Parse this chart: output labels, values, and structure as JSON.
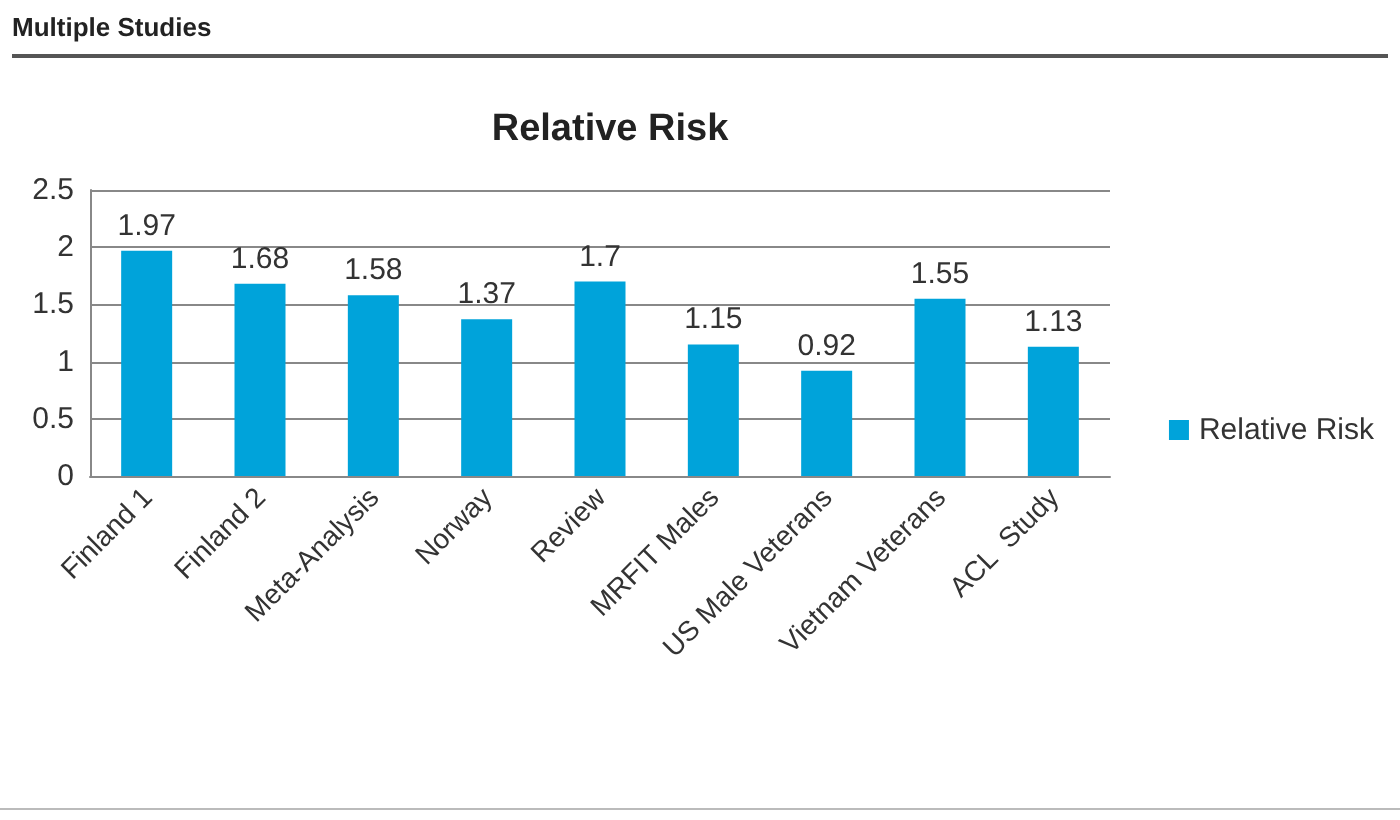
{
  "chart_data": {
    "type": "bar",
    "title": "Relative Risk",
    "subtitle": "Multiple Studies",
    "categories": [
      "Finland 1",
      "Finland 2",
      "Meta-Analysis",
      "Norway",
      "Review",
      "MRFIT Males",
      "US Male Veterans",
      "Vietnam Veterans",
      "ACL  Study"
    ],
    "series": [
      {
        "name": "Relative Risk",
        "color": "#00a3da",
        "values": [
          1.97,
          1.68,
          1.58,
          1.37,
          1.7,
          1.15,
          0.92,
          1.55,
          1.13
        ]
      }
    ],
    "ylim": [
      0,
      2.5
    ],
    "yticks": [
      0,
      0.5,
      1,
      1.5,
      2,
      2.5
    ],
    "grid": "y",
    "legend": "right",
    "data_labels": true
  }
}
